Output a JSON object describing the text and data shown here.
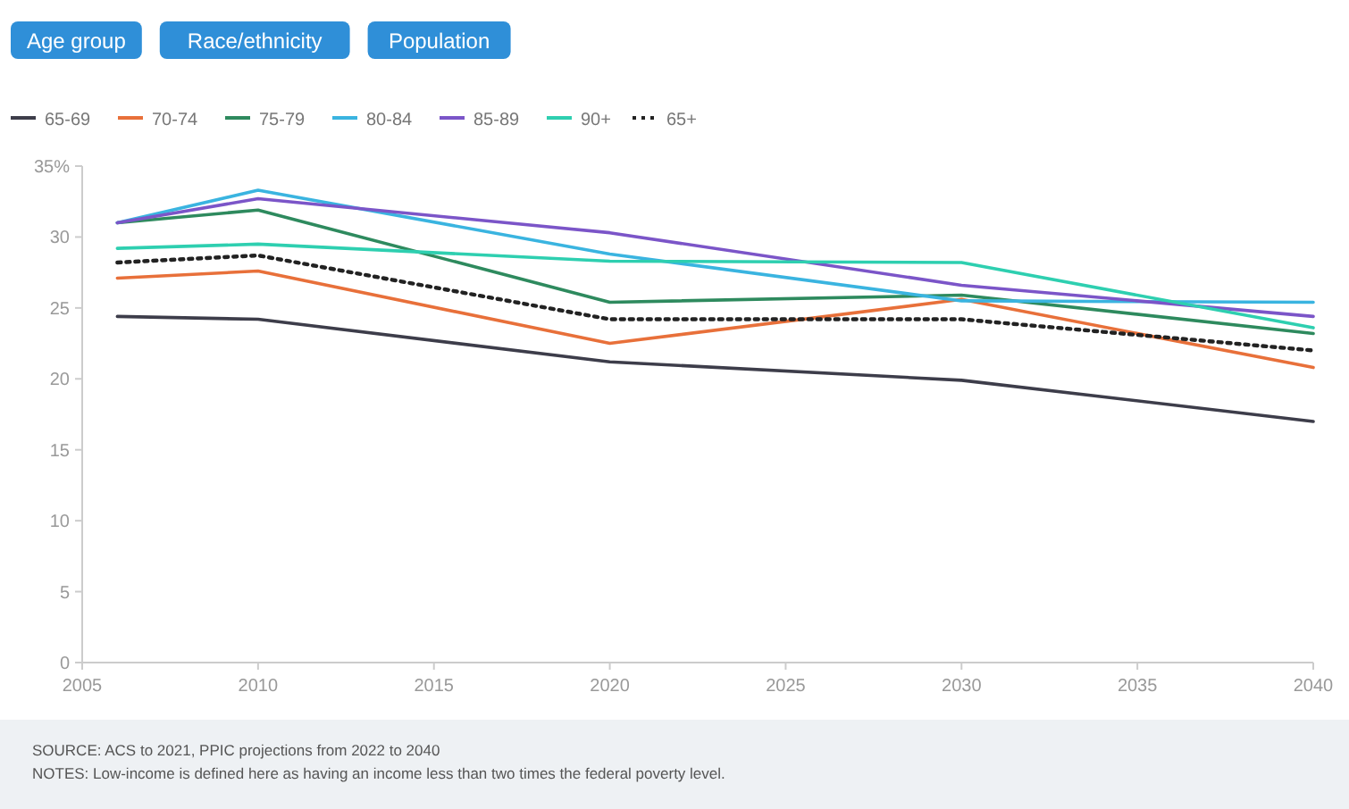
{
  "chart_data": {
    "type": "line",
    "x": [
      2006,
      2010,
      2020,
      2030,
      2040
    ],
    "xlim": [
      2005,
      2040
    ],
    "xticks": [
      2005,
      2010,
      2015,
      2020,
      2025,
      2030,
      2035,
      2040
    ],
    "ylim": [
      0,
      35
    ],
    "yticks": [
      0,
      5,
      10,
      15,
      20,
      25,
      30,
      {
        "value": 35,
        "label": "35%"
      }
    ],
    "grid": false,
    "legend": "top left",
    "line_style": "solid",
    "series": [
      {
        "name": "65-69",
        "color": "#3d3d4a",
        "values": [
          24.4,
          24.2,
          21.2,
          19.9,
          17.0
        ]
      },
      {
        "name": "70-74",
        "color": "#e8703a",
        "values": [
          27.1,
          27.6,
          22.5,
          25.6,
          20.8
        ]
      },
      {
        "name": "75-79",
        "color": "#2e8a5e",
        "values": [
          31.0,
          31.9,
          25.4,
          25.9,
          23.2
        ]
      },
      {
        "name": "80-84",
        "color": "#3ab4e0",
        "values": [
          31.0,
          33.3,
          28.8,
          25.5,
          25.4
        ]
      },
      {
        "name": "85-89",
        "color": "#7b55c8",
        "values": [
          31.0,
          32.7,
          30.3,
          26.6,
          24.4
        ]
      },
      {
        "name": "90+",
        "color": "#2ecfb0",
        "values": [
          29.2,
          29.5,
          28.3,
          28.2,
          23.6
        ]
      },
      {
        "name": "65+",
        "color": "#222222",
        "line_style": "dotted",
        "values": [
          28.2,
          28.7,
          24.2,
          24.2,
          22.0
        ]
      }
    ],
    "annotations": [
      "Age group",
      "Race/ethnicity",
      "Population",
      "SOURCE: ACS to 2021, PPIC projections from 2022 to 2040",
      "NOTES: Low-income is defined here as having an income less than two times the federal poverty level."
    ]
  }
}
